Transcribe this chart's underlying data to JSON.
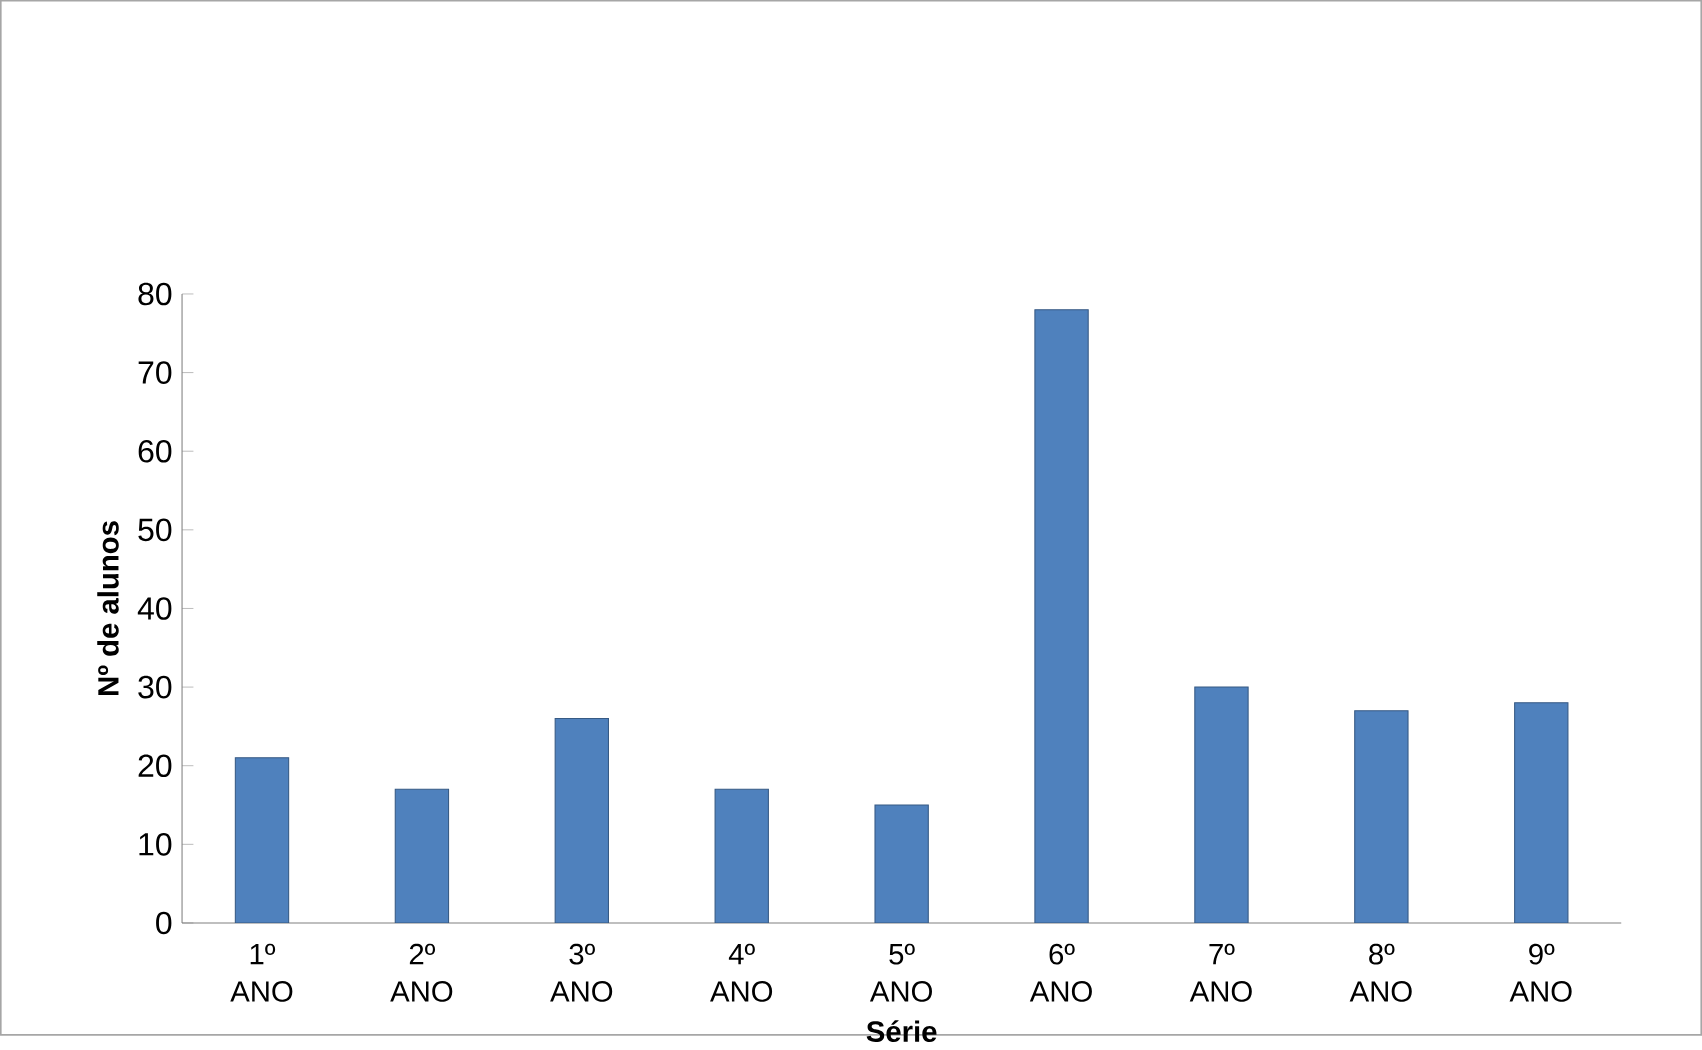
{
  "chart_data": {
    "type": "bar",
    "xlabel": "Série",
    "ylabel": "Nº de alunos",
    "categories": [
      "1º ANO",
      "2º ANO",
      "3º ANO",
      "4º ANO",
      "5º ANO",
      "6º ANO",
      "7º ANO",
      "8º ANO",
      "9º ANO"
    ],
    "values": [
      21,
      17,
      26,
      17,
      15,
      78,
      30,
      27,
      28
    ],
    "color": "#4f81bd",
    "ylim": [
      0,
      80
    ],
    "yticks": [
      0,
      10,
      20,
      30,
      40,
      50,
      60,
      70,
      80
    ],
    "grid": false
  }
}
